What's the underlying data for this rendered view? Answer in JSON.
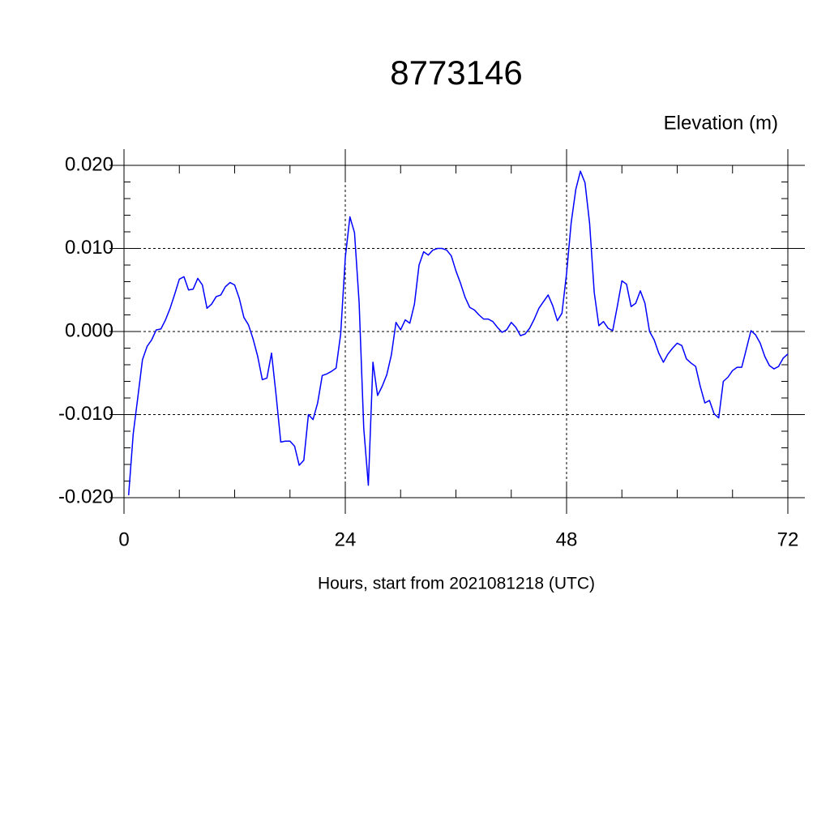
{
  "chart_data": {
    "type": "line",
    "title": "8773146",
    "subtitle": "Elevation (m)",
    "xlabel": "Hours, start from 2021081218 (UTC)",
    "xlim": [
      0,
      72
    ],
    "ylim": [
      -0.02,
      0.02
    ],
    "xticks": [
      0,
      24,
      48,
      72
    ],
    "xminorticks": [
      6,
      12,
      18,
      30,
      36,
      42,
      54,
      60,
      66
    ],
    "yticks": [
      {
        "value": -0.02,
        "label": "-0.020"
      },
      {
        "value": -0.01,
        "label": "-0.010"
      },
      {
        "value": 0,
        "label": "0.000"
      },
      {
        "value": 0.01,
        "label": "0.010"
      },
      {
        "value": 0.02,
        "label": "0.020"
      }
    ],
    "yminorticks": [
      -0.018,
      -0.016,
      -0.014,
      -0.012,
      -0.008,
      -0.006,
      -0.004,
      -0.002,
      0.002,
      0.004,
      0.006,
      0.008,
      0.012,
      0.014,
      0.016,
      0.018
    ],
    "grid": true,
    "series": [
      {
        "color": "#0000ff",
        "x": [
          0.5,
          1,
          1.5,
          2,
          2.5,
          3,
          3.5,
          4,
          4.5,
          5,
          5.5,
          6,
          6.5,
          7,
          7.5,
          8,
          8.5,
          9,
          9.5,
          10,
          10.5,
          11,
          11.5,
          12,
          12.5,
          13,
          13.5,
          14,
          14.5,
          15,
          15.5,
          16,
          16.5,
          17,
          17.5,
          18,
          18.5,
          19,
          19.5,
          20,
          20.5,
          21,
          21.5,
          22,
          22.5,
          23,
          23.5,
          24,
          24.5,
          25,
          25.5,
          26,
          26.5,
          27,
          27.5,
          28,
          28.5,
          29,
          29.5,
          30,
          30.5,
          31,
          31.5,
          32,
          32.5,
          33,
          33.5,
          34,
          34.5,
          35,
          35.5,
          36,
          36.5,
          37,
          37.5,
          38,
          38.5,
          39,
          39.5,
          40,
          40.5,
          41,
          41.5,
          42,
          42.5,
          43,
          43.5,
          44,
          44.5,
          45,
          45.5,
          46,
          46.5,
          47,
          47.5,
          48,
          48.5,
          49,
          49.5,
          50,
          50.5,
          51,
          51.5,
          52,
          52.5,
          53,
          53.5,
          54,
          54.5,
          55,
          55.5,
          56,
          56.5,
          57,
          57.5,
          58,
          58.5,
          59,
          59.5,
          60,
          60.5,
          61,
          61.5,
          62,
          62.5,
          63,
          63.5,
          64,
          64.5,
          65,
          65.5,
          66,
          66.5,
          67,
          67.5,
          68,
          68.5,
          69,
          69.5,
          70,
          70.5,
          71,
          71.5,
          72
        ],
        "values": [
          -0.0197,
          -0.0123,
          -0.0079,
          -0.0034,
          -0.0018,
          -0.001,
          0.0002,
          0.0003,
          0.0014,
          0.0028,
          0.0045,
          0.0063,
          0.0066,
          0.005,
          0.0051,
          0.0064,
          0.0056,
          0.0028,
          0.0033,
          0.0042,
          0.0044,
          0.0054,
          0.0059,
          0.0056,
          0.004,
          0.0017,
          0.0008,
          -0.0009,
          -0.003,
          -0.0058,
          -0.0056,
          -0.0026,
          -0.0077,
          -0.0133,
          -0.0132,
          -0.0132,
          -0.0138,
          -0.0161,
          -0.0155,
          -0.01,
          -0.0106,
          -0.0086,
          -0.0053,
          -0.0051,
          -0.0048,
          -0.0044,
          -0.0003,
          0.0089,
          0.0138,
          0.0119,
          0.0035,
          -0.0116,
          -0.0185,
          -0.0037,
          -0.0077,
          -0.0066,
          -0.0052,
          -0.0028,
          0.0011,
          0.0002,
          0.0014,
          0.001,
          0.0033,
          0.008,
          0.0096,
          0.0092,
          0.0098,
          0.01,
          0.01,
          0.0098,
          0.0091,
          0.0073,
          0.0058,
          0.0041,
          0.0029,
          0.0026,
          0.002,
          0.0015,
          0.0015,
          0.0012,
          0.0005,
          -0.0001,
          0.0002,
          0.0011,
          0.0005,
          -0.0005,
          -0.0003,
          0.0004,
          0.0015,
          0.0028,
          0.0036,
          0.0044,
          0.0031,
          0.0013,
          0.0022,
          0.007,
          0.0131,
          0.0171,
          0.0193,
          0.0179,
          0.013,
          0.0047,
          0.0007,
          0.0012,
          0.0004,
          0.0001,
          0.003,
          0.0061,
          0.0057,
          0.003,
          0.0034,
          0.0049,
          0.0034,
          0,
          -0.001,
          -0.0026,
          -0.0037,
          -0.0027,
          -0.002,
          -0.0014,
          -0.0017,
          -0.0033,
          -0.0038,
          -0.0042,
          -0.0066,
          -0.0086,
          -0.0083,
          -0.0099,
          -0.0104,
          -0.006,
          -0.0055,
          -0.0047,
          -0.0043,
          -0.0043,
          -0.0021,
          0.0001,
          -0.0004,
          -0.0014,
          -0.003,
          -0.0041,
          -0.0045,
          -0.0042,
          -0.0032,
          -0.0027
        ]
      }
    ]
  }
}
